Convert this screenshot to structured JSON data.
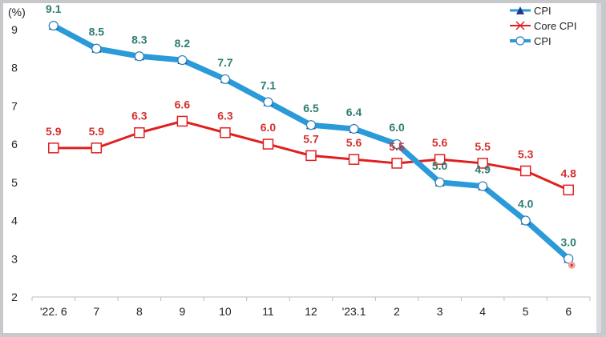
{
  "chart_data": {
    "type": "line",
    "ylabel": "(%)",
    "ylim": [
      2,
      9.5
    ],
    "yticks": [
      2,
      3,
      4,
      5,
      6,
      7,
      8,
      9
    ],
    "categories": [
      "'22. 6",
      "7",
      "8",
      "9",
      "10",
      "11",
      "12",
      "'23.1",
      "2",
      "3",
      "4",
      "5",
      "6"
    ],
    "series": [
      {
        "name": "CPI",
        "color": "#2b9ad8",
        "values": [
          9.1,
          8.5,
          8.3,
          8.2,
          7.7,
          7.1,
          6.5,
          6.4,
          6.0,
          5.0,
          4.9,
          4.0,
          3.0
        ],
        "labels": [
          "9.1",
          "8.5",
          "8.3",
          "8.2",
          "7.7",
          "7.1",
          "6.5",
          "6.4",
          "6.0",
          "5.0",
          "4.9",
          "4.0",
          "3.0"
        ]
      },
      {
        "name": "Core CPI",
        "color": "#e02020",
        "values": [
          5.9,
          5.9,
          6.3,
          6.6,
          6.3,
          6.0,
          5.7,
          5.6,
          5.5,
          5.6,
          5.5,
          5.3,
          4.8
        ],
        "labels": [
          "5.9",
          "5.9",
          "6.3",
          "6.6",
          "6.3",
          "6.0",
          "5.7",
          "5.6",
          "5.5",
          "5.6",
          "5.5",
          "5.3",
          "4.8"
        ]
      }
    ],
    "legend": {
      "placement": "top-right",
      "entries": [
        {
          "label": "CPI",
          "marker": "triangle",
          "color": "#1f3a8a"
        },
        {
          "label": "Core CPI",
          "marker": "x",
          "color": "#e02020"
        },
        {
          "label": "CPI",
          "marker": "circle",
          "color": "#2b9ad8"
        }
      ]
    }
  }
}
